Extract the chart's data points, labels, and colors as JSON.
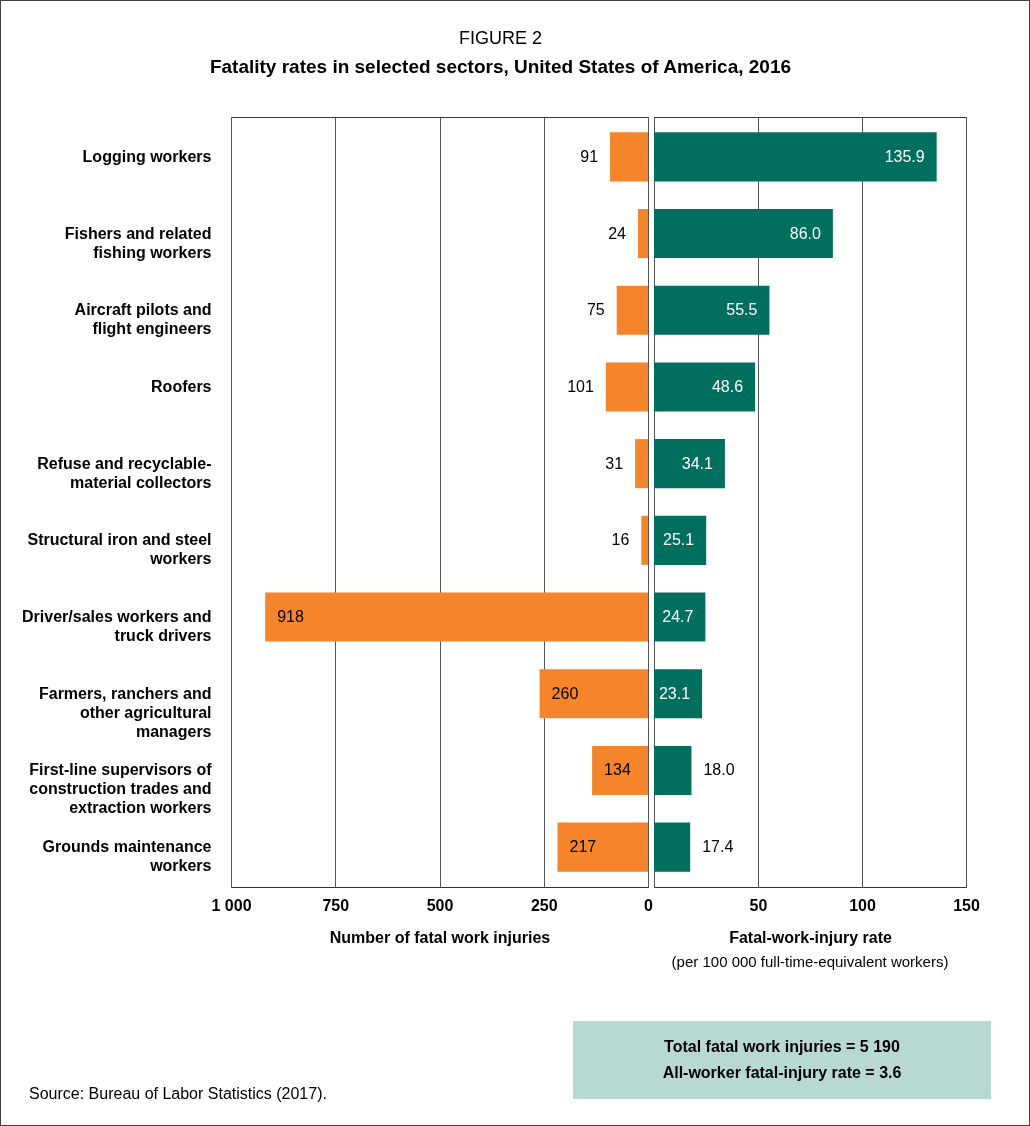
{
  "chart_data": [
    {
      "type": "bar",
      "orientation": "horizontal",
      "title": "FIGURE 2",
      "subtitle": "Fatality rates in selected sectors, United States of America, 2016",
      "xlabel": "Number of fatal work injuries",
      "categories": [
        "Logging workers",
        "Fishers and related fishing workers",
        "Aircraft pilots and flight engineers",
        "Roofers",
        "Refuse and recyclable-material collectors",
        "Structural iron and steel workers",
        "Driver/sales workers and truck drivers",
        "Farmers, ranchers and other agricultural managers",
        "First-line supervisors of construction trades and extraction workers",
        "Grounds maintenance workers"
      ],
      "values": [
        91,
        24,
        75,
        101,
        31,
        16,
        918,
        260,
        134,
        217
      ],
      "color": "#f5842a",
      "xlim": [
        1000,
        0
      ],
      "xticks": [
        {
          "value": 1000,
          "label": "1 000"
        },
        750,
        500,
        250,
        0
      ],
      "grid": "x",
      "data_labels": true,
      "annotations": [
        "Total fatal work injuries = 5 190",
        "All-worker fatal-injury rate = 3.6",
        "Source: Bureau of Labor Statistics (2017)."
      ]
    },
    {
      "type": "bar",
      "orientation": "horizontal",
      "xlabel": "Fatal-work-injury rate",
      "categories": [
        "Logging workers",
        "Fishers and related fishing workers",
        "Aircraft pilots and flight engineers",
        "Roofers",
        "Refuse and recyclable-material collectors",
        "Structural iron and steel workers",
        "Driver/sales workers and truck drivers",
        "Farmers, ranchers and other agricultural managers",
        "First-line supervisors of construction trades and extraction workers",
        "Grounds maintenance workers"
      ],
      "values": [
        135.9,
        86.0,
        55.5,
        48.6,
        34.1,
        25.1,
        24.7,
        23.1,
        18.0,
        17.4
      ],
      "color": "#006f5e",
      "value_labels": [
        "135.9",
        "86.0",
        "55.5",
        "48.6",
        "34.1",
        "25.1",
        "24.7",
        "23.1",
        "18.0",
        "17.4"
      ],
      "xlim": [
        0,
        150
      ],
      "xticks": [
        {
          "value": 0,
          "label": null
        },
        50,
        100,
        150
      ],
      "grid": "x",
      "tick_labels": "x",
      "annotations": [
        "(per 100 000 full-time-equivalent workers)"
      ]
    }
  ]
}
